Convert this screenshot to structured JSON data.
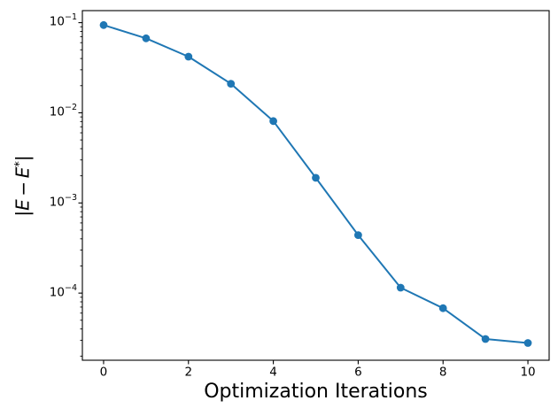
{
  "figure": {
    "background": "#ffffff"
  },
  "chart_data": {
    "type": "line",
    "title": "",
    "xlabel": "Optimization Iterations",
    "ylabel": "|E − E*|",
    "ylabel_parts": {
      "bar_open": "|",
      "e1": "E",
      "minus": "−",
      "e2": "E",
      "star": "*",
      "bar_close": "|"
    },
    "x": [
      0,
      1,
      2,
      3,
      4,
      5,
      6,
      7,
      8,
      9,
      10
    ],
    "y": [
      0.094,
      0.067,
      0.042,
      0.021,
      0.0081,
      0.0019,
      0.00044,
      0.000115,
      6.8e-05,
      3.1e-05,
      2.8e-05
    ],
    "xscale": "linear",
    "yscale": "log",
    "xlim": [
      -0.5,
      10.5
    ],
    "ylim": [
      1.8e-05,
      0.136
    ],
    "xticks": [
      0,
      2,
      4,
      6,
      8,
      10
    ],
    "ytick_exponents": [
      -1,
      -2,
      -3,
      -4
    ],
    "grid": false,
    "legend": false,
    "line_color": "#1f77b4",
    "marker": "circle",
    "marker_color": "#1f77b4",
    "axis_color": "#000000"
  }
}
